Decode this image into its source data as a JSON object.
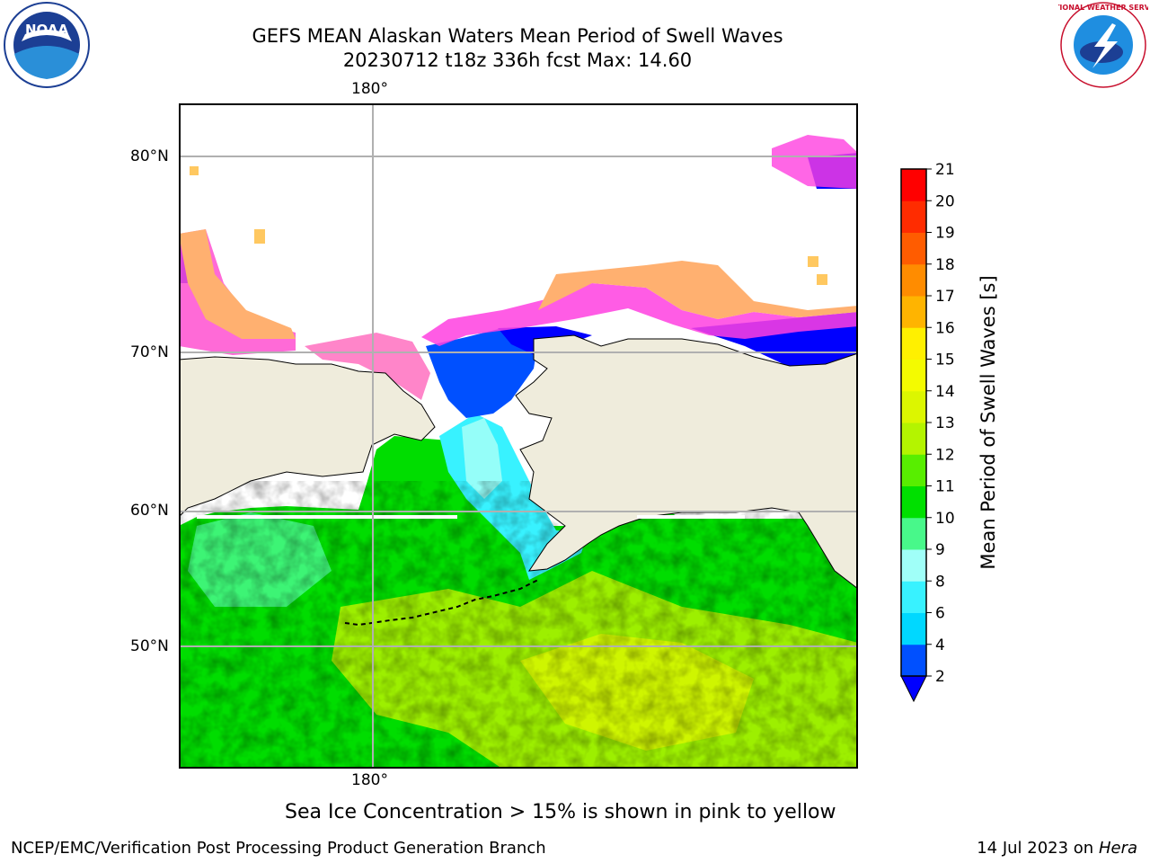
{
  "header": {
    "title_line1": "GEFS MEAN Alaskan Waters Mean Period of Swell Waves",
    "title_line2": "20230712 t18z 336h fcst   Max: 14.60"
  },
  "map": {
    "lon_label_top": "180°",
    "lon_label_bottom": "180°",
    "lat_labels": [
      "80°N",
      "70°N",
      "60°N",
      "50°N"
    ],
    "land_color": "#efecdc",
    "grid_color": "#b0b0b0"
  },
  "colorbar": {
    "label": "Mean Period of Swell Waves [s]",
    "ticks": [
      "2",
      "4",
      "6",
      "8",
      "9",
      "10",
      "11",
      "12",
      "13",
      "14",
      "15",
      "16",
      "17",
      "18",
      "19",
      "20",
      "21"
    ],
    "colors": [
      "#0050ff",
      "#00d8ff",
      "#38f2ff",
      "#a0fff8",
      "#48f88a",
      "#00e000",
      "#58ee00",
      "#b4f400",
      "#dcf600",
      "#f4fb00",
      "#fff000",
      "#ffb400",
      "#ff8c00",
      "#ff5c00",
      "#ff2c00",
      "#ff0000"
    ],
    "under_color": "#0000ff"
  },
  "footer": {
    "note": "Sea Ice Concentration > 15% is shown in pink to yellow",
    "left": "NCEP/EMC/Verification Post Processing Product Generation Branch",
    "right_prefix": "14 Jul 2023 on ",
    "right_host": "Hera"
  },
  "logos": {
    "noaa_text": "NOAA",
    "nws_text": "NATIONAL WEATHER SERVICE"
  }
}
